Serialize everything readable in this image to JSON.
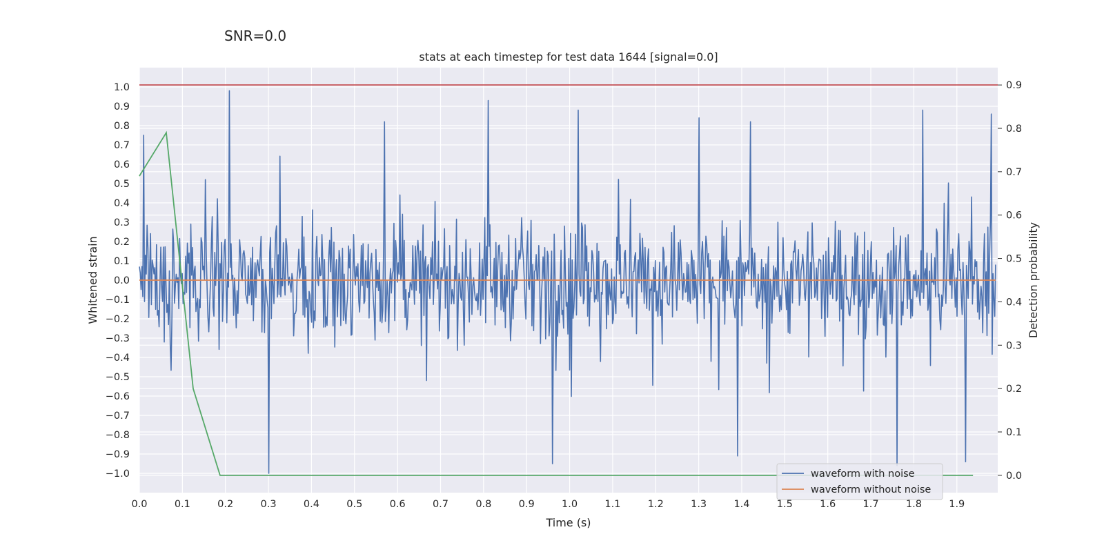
{
  "chart_data": {
    "type": "line",
    "suptitle": "SNR=0.0",
    "title": "stats at each timestep for test data 1644 [signal=0.0]",
    "xlabel": "Time (s)",
    "ylabel": "Whitened strain",
    "ylabel_right": "Detection probability",
    "xlim": [
      0.0,
      1.995
    ],
    "ylim": [
      -1.1,
      1.1
    ],
    "ylim_right": [
      -0.04,
      0.94
    ],
    "x_ticks": [
      "0.0",
      "0.1",
      "0.2",
      "0.3",
      "0.4",
      "0.5",
      "0.6",
      "0.7",
      "0.8",
      "0.9",
      "1.0",
      "1.1",
      "1.2",
      "1.3",
      "1.4",
      "1.5",
      "1.6",
      "1.7",
      "1.8",
      "1.9"
    ],
    "y_ticks": [
      "1.0",
      "0.9",
      "0.8",
      "0.7",
      "0.6",
      "0.5",
      "0.4",
      "0.3",
      "0.2",
      "0.1",
      "0.0",
      "−0.1",
      "−0.2",
      "−0.3",
      "−0.4",
      "−0.5",
      "−0.6",
      "−0.7",
      "−0.8",
      "−0.9",
      "−1.0"
    ],
    "y_ticks_right": [
      "0.9",
      "0.8",
      "0.7",
      "0.6",
      "0.5",
      "0.4",
      "0.3",
      "0.2",
      "0.1",
      "0.0"
    ],
    "series": [
      {
        "name": "waveform with noise",
        "color": "#4c72b0",
        "axis": "left",
        "x_range": [
          0.0,
          1.99
        ],
        "n_points": 1000,
        "typical_range": [
          -0.4,
          0.4
        ],
        "spikes": [
          {
            "x": 0.01,
            "y": 0.75
          },
          {
            "x": 0.21,
            "y": 0.98
          },
          {
            "x": 0.3,
            "y": -1.0
          },
          {
            "x": 0.57,
            "y": 0.82
          },
          {
            "x": 0.81,
            "y": 0.93
          },
          {
            "x": 0.96,
            "y": -0.95
          },
          {
            "x": 1.02,
            "y": 0.88
          },
          {
            "x": 1.3,
            "y": 0.84
          },
          {
            "x": 1.39,
            "y": -0.91
          },
          {
            "x": 1.42,
            "y": 0.82
          },
          {
            "x": 1.76,
            "y": -0.96
          },
          {
            "x": 1.82,
            "y": 0.88
          },
          {
            "x": 1.92,
            "y": -0.94
          },
          {
            "x": 1.98,
            "y": 0.86
          }
        ]
      },
      {
        "name": "waveform without noise",
        "color": "#dd8452",
        "axis": "left",
        "x": [
          0.0,
          1.99
        ],
        "y": [
          0.0,
          0.0
        ]
      },
      {
        "name": "Detection probability",
        "color": "#55a868",
        "axis": "right",
        "x": [
          0.0,
          0.0625,
          0.125,
          0.1875,
          0.25,
          1.9375
        ],
        "y": [
          0.69,
          0.79,
          0.2,
          0.0,
          0.0,
          0.0
        ]
      },
      {
        "name": "threshold",
        "color": "#c44e52",
        "axis": "right",
        "x": [
          0.0,
          1.995
        ],
        "y": [
          0.9,
          0.9
        ]
      }
    ],
    "legend": {
      "location": "lower right",
      "entries": [
        {
          "label": "waveform with noise",
          "color": "#4c72b0"
        },
        {
          "label": "waveform without noise",
          "color": "#dd8452"
        }
      ]
    }
  }
}
